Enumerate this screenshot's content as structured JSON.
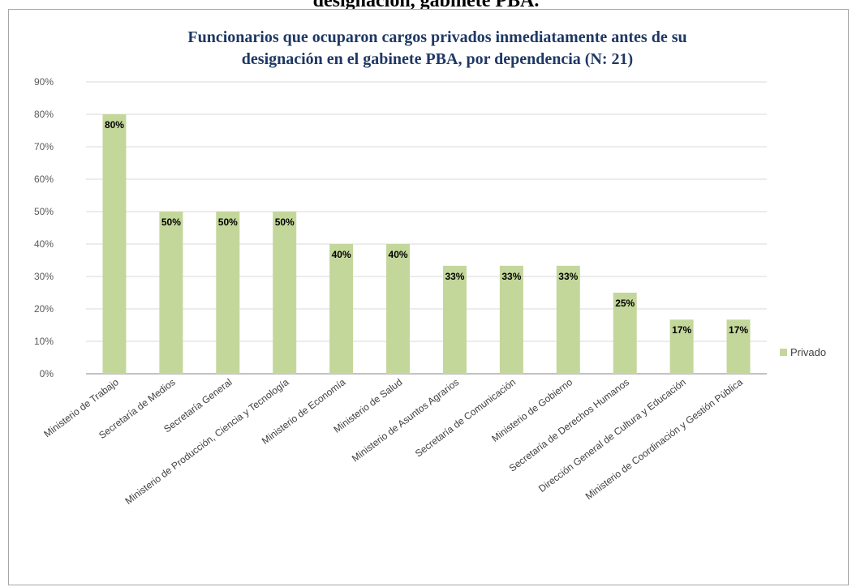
{
  "caption": "designación, gabinete PBA.",
  "chart_data": {
    "type": "bar",
    "title": [
      "Funcionarios que ocuparon cargos privados inmediatamente antes de su",
      "designación en el gabinete PBA, por dependencia (N: 21)"
    ],
    "categories": [
      "Ministerio de Trabajo",
      "Secretaría de Medios",
      "Secretaría General",
      "Ministerio de Producción, Ciencia y Tecnología",
      "Ministerio de Economía",
      "Ministerio de Salud",
      "Ministerio de Asuntos Agrarios",
      "Secretaría de Comunicación",
      "Ministerio de Gobierno",
      "Secretaría de Derechos Humanos",
      "Dirección General de Cultura y Educación",
      "Ministerio de Coordinación y Gestión Pública"
    ],
    "series": [
      {
        "name": "Privado",
        "color": "#c4d79b",
        "values": [
          80,
          50,
          50,
          50,
          40,
          40,
          33.3,
          33.3,
          33.3,
          25,
          16.7,
          16.7
        ],
        "labels": [
          "80%",
          "50%",
          "50%",
          "50%",
          "40%",
          "40%",
          "33%",
          "33%",
          "33%",
          "25%",
          "17%",
          "17%"
        ]
      }
    ],
    "yticks": [
      "0%",
      "10%",
      "20%",
      "30%",
      "40%",
      "50%",
      "60%",
      "70%",
      "80%",
      "90%"
    ],
    "ylim": [
      0,
      90
    ],
    "grid": true,
    "legend": "right"
  }
}
